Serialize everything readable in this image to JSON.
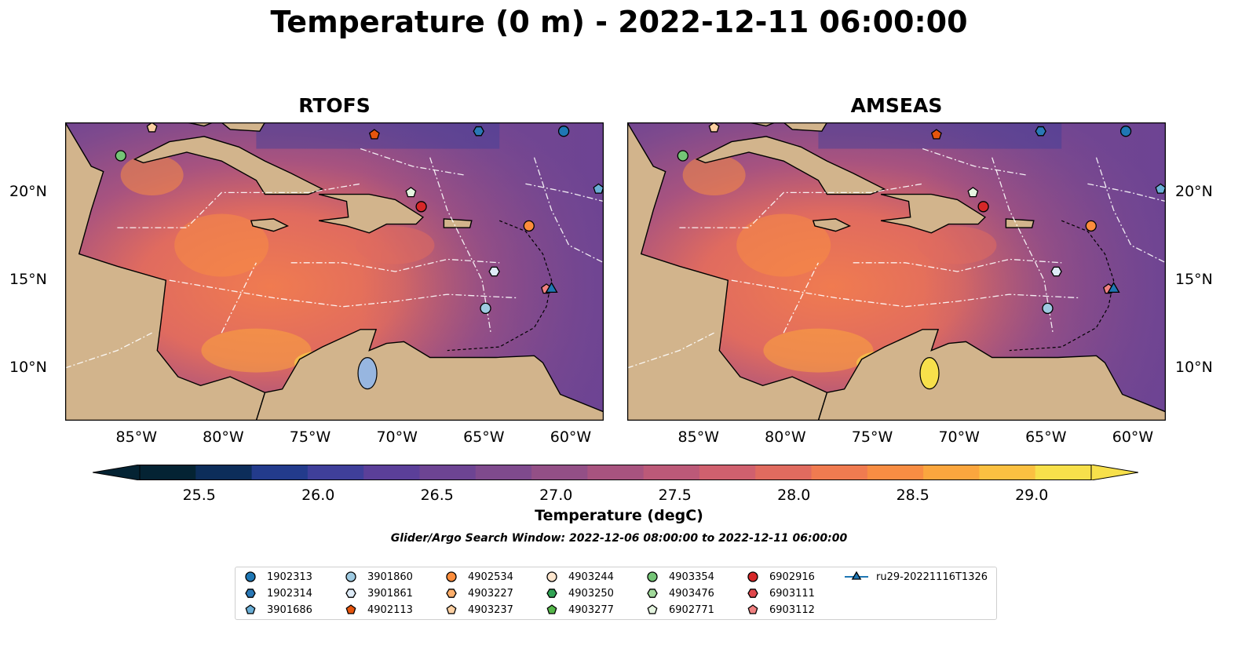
{
  "title": "Temperature (0 m) - 2022-12-11 06:00:00",
  "panels": [
    {
      "title": "RTOFS"
    },
    {
      "title": "AMSEAS"
    }
  ],
  "axes": {
    "lon_ticks": [
      "85°W",
      "80°W",
      "75°W",
      "70°W",
      "65°W",
      "60°W"
    ],
    "lat_ticks": [
      "20°N",
      "15°N",
      "10°N"
    ]
  },
  "colorbar": {
    "label": "Temperature (degC)",
    "ticks": [
      "25.5",
      "26.0",
      "26.5",
      "27.0",
      "27.5",
      "28.0",
      "28.5",
      "29.0"
    ],
    "min": 25.25,
    "max": 29.25,
    "colors": [
      "#042333",
      "#0c2d5a",
      "#233b8c",
      "#3f3f9a",
      "#5b3f99",
      "#6d4493",
      "#7f4a8d",
      "#934f86",
      "#a8537f",
      "#bc5978",
      "#d0606e",
      "#e06b5f",
      "#f07b50",
      "#f88d43",
      "#fba63e",
      "#fbc041",
      "#f7e04b"
    ]
  },
  "search_window": "Glider/Argo Search Window: 2022-12-06 08:00:00 to 2022-12-11 06:00:00",
  "legend": [
    {
      "id": "1902313",
      "marker": "circle",
      "color": "#1f77b4"
    },
    {
      "id": "1902314",
      "marker": "hexagon",
      "color": "#2a78b6"
    },
    {
      "id": "3901686",
      "marker": "pentagon",
      "color": "#6aaed6"
    },
    {
      "id": "3901860",
      "marker": "circle",
      "color": "#9ecae1"
    },
    {
      "id": "3901861",
      "marker": "hexagon",
      "color": "#deebf7"
    },
    {
      "id": "4902113",
      "marker": "pentagon",
      "color": "#e6550d"
    },
    {
      "id": "4902534",
      "marker": "circle",
      "color": "#fd8d3c"
    },
    {
      "id": "4903227",
      "marker": "hexagon",
      "color": "#fdae6b"
    },
    {
      "id": "4903237",
      "marker": "pentagon",
      "color": "#fdd0a2"
    },
    {
      "id": "4903244",
      "marker": "circle",
      "color": "#fee6ce"
    },
    {
      "id": "4903250",
      "marker": "hexagon",
      "color": "#31a354"
    },
    {
      "id": "4903277",
      "marker": "pentagon",
      "color": "#55b74a"
    },
    {
      "id": "4903354",
      "marker": "circle",
      "color": "#74c476"
    },
    {
      "id": "4903476",
      "marker": "hexagon",
      "color": "#a1d99b"
    },
    {
      "id": "6902771",
      "marker": "pentagon",
      "color": "#e5f5e0"
    },
    {
      "id": "6902916",
      "marker": "circle",
      "color": "#d62728"
    },
    {
      "id": "6903111",
      "marker": "hexagon",
      "color": "#e0474c"
    },
    {
      "id": "6903112",
      "marker": "pentagon",
      "color": "#f08080"
    },
    {
      "id": "ru29-20221116T1326",
      "marker": "triangle",
      "color": "#1f77b4"
    }
  ],
  "floats": [
    {
      "id": "1902313",
      "lon": -60.3,
      "lat": 23.5
    },
    {
      "id": "3901860",
      "lon": -64.8,
      "lat": 13.4
    },
    {
      "id": "3901861",
      "lon": -64.3,
      "lat": 15.5
    },
    {
      "id": "1902314",
      "lon": -65.2,
      "lat": 23.5
    },
    {
      "id": "3901686",
      "lon": -58.3,
      "lat": 20.2
    },
    {
      "id": "4902113",
      "lon": -71.2,
      "lat": 23.3
    },
    {
      "id": "4903237",
      "lon": -84.0,
      "lat": 23.7
    },
    {
      "id": "4903354",
      "lon": -85.8,
      "lat": 22.1
    },
    {
      "id": "6902771",
      "lon": -69.1,
      "lat": 20.0
    },
    {
      "id": "6902916",
      "lon": -68.5,
      "lat": 19.2
    },
    {
      "id": "4902534",
      "lon": -62.3,
      "lat": 18.1
    },
    {
      "id": "6903112",
      "lon": -61.3,
      "lat": 14.5
    },
    {
      "id": "ru29-20221116T1326",
      "lon": -61.0,
      "lat": 14.5
    }
  ],
  "map_extent": {
    "lon_min": -89.0,
    "lon_max": -58.0,
    "lat_min": 7.0,
    "lat_max": 24.0
  }
}
